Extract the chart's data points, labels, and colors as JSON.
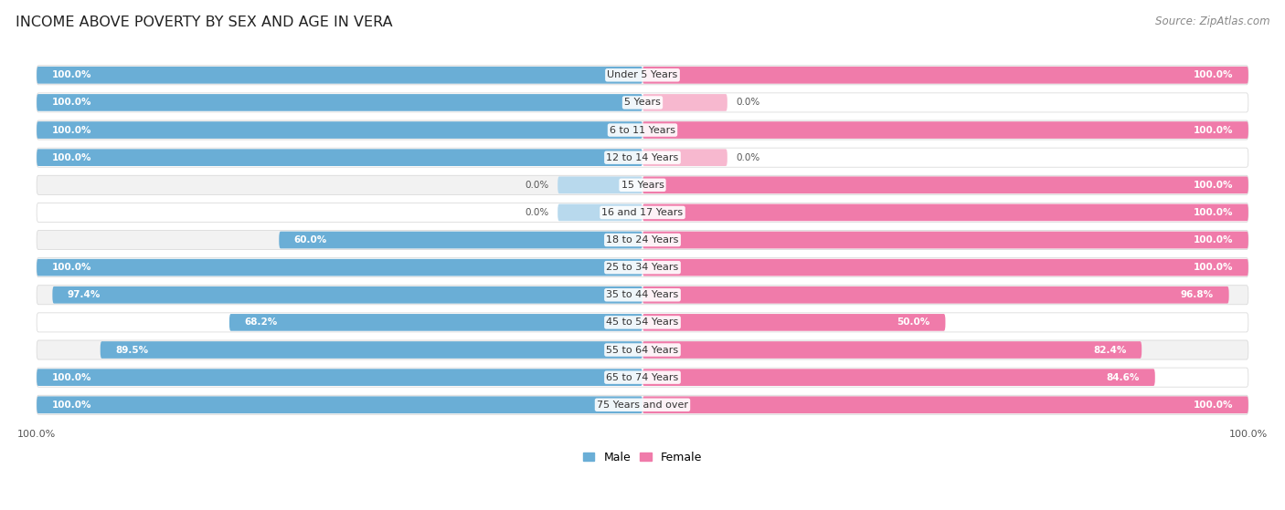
{
  "title": "INCOME ABOVE POVERTY BY SEX AND AGE IN VERA",
  "source": "Source: ZipAtlas.com",
  "categories": [
    "Under 5 Years",
    "5 Years",
    "6 to 11 Years",
    "12 to 14 Years",
    "15 Years",
    "16 and 17 Years",
    "18 to 24 Years",
    "25 to 34 Years",
    "35 to 44 Years",
    "45 to 54 Years",
    "55 to 64 Years",
    "65 to 74 Years",
    "75 Years and over"
  ],
  "male": [
    100.0,
    100.0,
    100.0,
    100.0,
    0.0,
    0.0,
    60.0,
    100.0,
    97.4,
    68.2,
    89.5,
    100.0,
    100.0
  ],
  "female": [
    100.0,
    0.0,
    100.0,
    0.0,
    100.0,
    100.0,
    100.0,
    100.0,
    96.8,
    50.0,
    82.4,
    84.6,
    100.0
  ],
  "male_color": "#6aaed6",
  "female_color": "#f07baa",
  "male_light_color": "#b8d9ed",
  "female_light_color": "#f7b8cf",
  "male_label": "Male",
  "female_label": "Female",
  "bar_height": 0.62,
  "bg_color_even": "#f2f2f2",
  "bg_color_odd": "#ffffff",
  "title_fontsize": 11.5,
  "source_fontsize": 8.5,
  "label_fontsize": 8,
  "value_fontsize": 7.5,
  "legend_fontsize": 9,
  "axis_fontsize": 8
}
